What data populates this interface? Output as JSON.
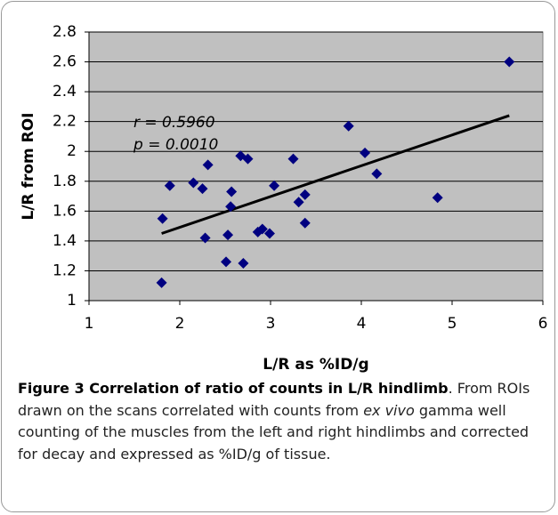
{
  "chart_data": {
    "type": "scatter",
    "x": [
      1.8,
      1.81,
      1.89,
      2.15,
      2.25,
      2.28,
      2.31,
      2.51,
      2.53,
      2.56,
      2.57,
      2.67,
      2.7,
      2.75,
      2.86,
      2.91,
      2.99,
      3.04,
      3.25,
      3.31,
      3.38,
      3.38,
      3.86,
      4.04,
      4.17,
      4.84,
      5.63
    ],
    "series": [
      {
        "color": "#000080",
        "values": [
          1.12,
          1.55,
          1.77,
          1.79,
          1.75,
          1.42,
          1.91,
          1.26,
          1.44,
          1.63,
          1.73,
          1.97,
          1.25,
          1.95,
          1.46,
          1.48,
          1.45,
          1.77,
          1.95,
          1.66,
          1.71,
          1.52,
          2.17,
          1.99,
          1.85,
          1.69,
          2.6
        ]
      }
    ],
    "trendline": {
      "color": "#000000",
      "x": [
        1.8,
        5.63
      ],
      "y": [
        1.45,
        2.24
      ]
    },
    "annotations": [
      "r = 0.5960",
      "p = 0.0010"
    ],
    "xlabel": "L/R as %ID/g",
    "ylabel": "L/R from ROI",
    "xlim": [
      1,
      6
    ],
    "xticks": [
      1,
      2,
      3,
      4,
      5,
      6
    ],
    "ylim": [
      1,
      2.8
    ],
    "yticks": [
      1,
      1.2,
      1.4,
      1.6,
      1.8,
      2,
      2.2,
      2.4,
      2.6,
      2.8
    ],
    "grid": true,
    "plot_background": "#c0c0c0"
  },
  "caption": {
    "title": "Figure 3 Correlation of ratio of counts in L/R hindlimb",
    "text": [
      ". From ROIs drawn on the scans correlated with counts from ",
      "ex vivo",
      " gamma well counting of the muscles from the left and right hindlimbs and corrected for decay and expressed as %ID/g of tissue."
    ]
  }
}
